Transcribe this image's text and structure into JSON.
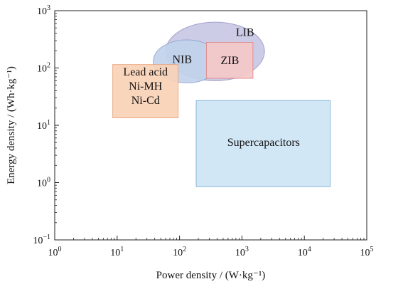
{
  "chart_data": {
    "type": "scatter",
    "title": "",
    "xlabel": "Power density / (W·kg⁻¹)",
    "ylabel": "Energy density / (Wh·kg⁻¹)",
    "x_scale": "log",
    "y_scale": "log",
    "xlim": [
      1,
      100000
    ],
    "ylim": [
      0.1,
      1000
    ],
    "grid": false,
    "x_ticks": [
      {
        "value": 1,
        "base": "10",
        "exp": "0"
      },
      {
        "value": 10,
        "base": "10",
        "exp": "1"
      },
      {
        "value": 100,
        "base": "10",
        "exp": "2"
      },
      {
        "value": 1000,
        "base": "10",
        "exp": "3"
      },
      {
        "value": 10000,
        "base": "10",
        "exp": "4"
      },
      {
        "value": 100000,
        "base": "10",
        "exp": "5"
      }
    ],
    "y_ticks": [
      {
        "value": 0.1,
        "base": "10",
        "exp": "−1"
      },
      {
        "value": 1,
        "base": "10",
        "exp": "0"
      },
      {
        "value": 10,
        "base": "10",
        "exp": "1"
      },
      {
        "value": 100,
        "base": "10",
        "exp": "2"
      },
      {
        "value": 1000,
        "base": "10",
        "exp": "3"
      }
    ],
    "regions": [
      {
        "label": [
          "LIB"
        ],
        "shape": "ellipse",
        "x": [
          60,
          2300
        ],
        "y": [
          60,
          630
        ],
        "color": "#c9c8e4",
        "stroke": "#9c9ac6"
      },
      {
        "label": [
          "NIB"
        ],
        "shape": "ellipse",
        "x": [
          38,
          450
        ],
        "y": [
          55,
          310
        ],
        "color": "#c3d3ec",
        "stroke": "#8fa7d0"
      },
      {
        "label": [
          "ZIB"
        ],
        "shape": "rect",
        "x": [
          270,
          1500
        ],
        "y": [
          66,
          280
        ],
        "color": "#f5c9c9",
        "stroke": "#e08a8a"
      },
      {
        "label": [
          "Lead acid",
          "Ni-MH",
          "Ni-Cd"
        ],
        "shape": "rect",
        "x": [
          8.5,
          95
        ],
        "y": [
          13.5,
          115
        ],
        "color": "#f9d2b7",
        "stroke": "#e9a77c"
      },
      {
        "label": [
          "Supercapacitors"
        ],
        "shape": "rect",
        "x": [
          185,
          26000
        ],
        "y": [
          0.85,
          27
        ],
        "color": "#cfe6f5",
        "stroke": "#7fb2d5"
      }
    ]
  }
}
